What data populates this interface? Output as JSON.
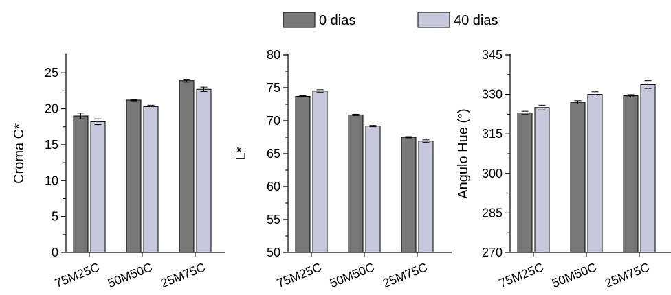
{
  "legend": [
    {
      "label": "0 dias",
      "color": "#787878"
    },
    {
      "label": "40 dias",
      "color": "#c8c8dc"
    }
  ],
  "chart_data": [
    {
      "type": "bar",
      "categories": [
        "75M25C",
        "50M50C",
        "25M75C"
      ],
      "series": [
        {
          "name": "0 dias",
          "values": [
            19.0,
            21.2,
            23.9
          ],
          "errors": [
            0.4,
            0.1,
            0.2
          ]
        },
        {
          "name": "40 dias",
          "values": [
            18.2,
            20.3,
            22.7
          ],
          "errors": [
            0.4,
            0.2,
            0.3
          ]
        }
      ],
      "ylabel": "Croma C*",
      "ylim": [
        0,
        27.5
      ],
      "yticks": [
        "0",
        "5",
        "10",
        "15",
        "20",
        "25"
      ],
      "ytick_values": [
        0,
        5,
        10,
        15,
        20,
        25
      ]
    },
    {
      "type": "bar",
      "categories": [
        "75M25C",
        "50M50C",
        "25M75C"
      ],
      "series": [
        {
          "name": "0 dias",
          "values": [
            73.7,
            70.9,
            67.5
          ],
          "errors": [
            0.1,
            0.1,
            0.1
          ]
        },
        {
          "name": "40 dias",
          "values": [
            74.5,
            69.2,
            66.9
          ],
          "errors": [
            0.2,
            0.1,
            0.2
          ]
        }
      ],
      "ylabel": "L*",
      "ylim": [
        50,
        80
      ],
      "yticks": [
        "50",
        "55",
        "60",
        "65",
        "70",
        "75",
        "80"
      ],
      "ytick_values": [
        50,
        55,
        60,
        65,
        70,
        75,
        80
      ]
    },
    {
      "type": "bar",
      "categories": [
        "75M25C",
        "50M50C",
        "25M75C"
      ],
      "series": [
        {
          "name": "0 dias",
          "values": [
            323,
            327,
            329.5
          ],
          "errors": [
            0.6,
            0.6,
            0.4
          ]
        },
        {
          "name": "40 dias",
          "values": [
            325,
            330,
            333.7
          ],
          "errors": [
            0.9,
            1.0,
            1.5
          ]
        }
      ],
      "ylabel": "Angulo Hue (°)",
      "ylim": [
        270,
        345
      ],
      "yticks": [
        "270",
        "285",
        "300",
        "315",
        "330",
        "345"
      ],
      "ytick_values": [
        270,
        285,
        300,
        315,
        330,
        345
      ]
    }
  ]
}
